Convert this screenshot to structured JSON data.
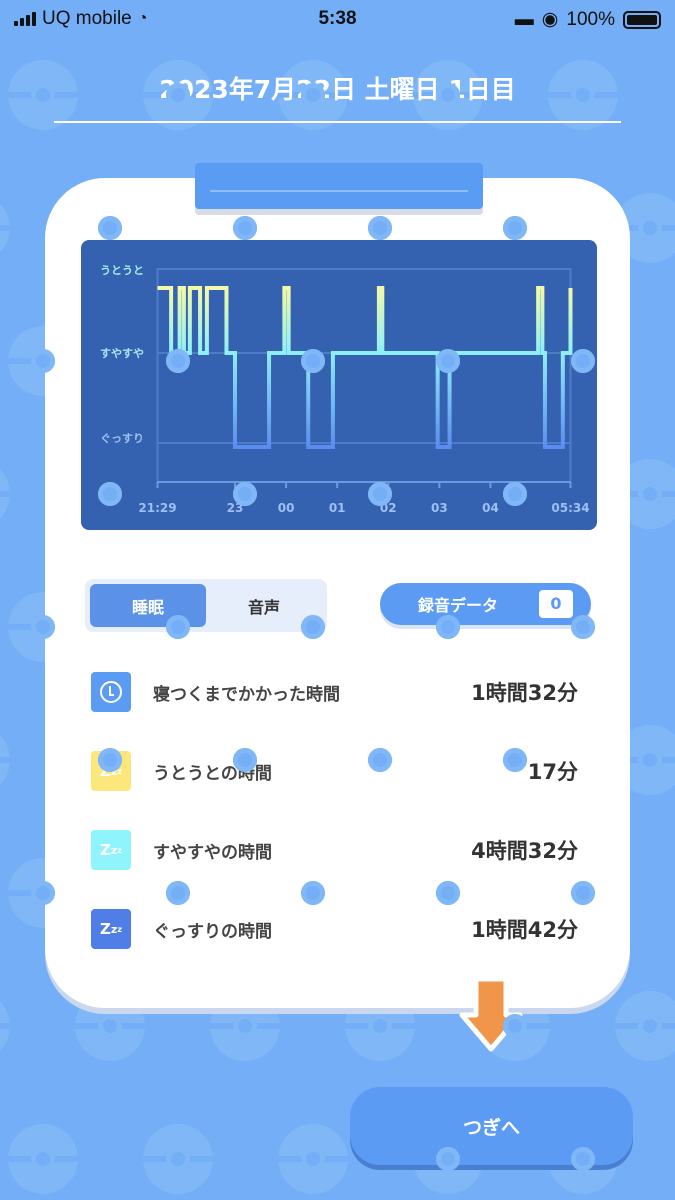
{
  "status_bar": {
    "carrier": "UQ mobile",
    "time": "5:38",
    "battery": "100%",
    "icons": [
      "signal-icon",
      "wifi-icon",
      "bed-icon",
      "orientation-lock-icon",
      "battery-icon"
    ]
  },
  "header": {
    "title": "2023年7月22日 土曜日 1日目"
  },
  "chart_data": {
    "type": "line",
    "step": true,
    "y_categories": [
      "うとうと",
      "すやすや",
      "ぐっすり"
    ],
    "x_ticks": [
      "21:29",
      "23",
      "00",
      "01",
      "02",
      "03",
      "04",
      "05:34"
    ],
    "x_range": [
      "21:29",
      "05:34"
    ],
    "segments": [
      {
        "start": "21:29",
        "end": "21:45",
        "level": "うとうと"
      },
      {
        "start": "21:45",
        "end": "21:55",
        "level": "すやすや"
      },
      {
        "start": "21:55",
        "end": "22:00",
        "level": "うとうと"
      },
      {
        "start": "22:00",
        "end": "22:07",
        "level": "すやすや"
      },
      {
        "start": "22:07",
        "end": "22:19",
        "level": "うとうと"
      },
      {
        "start": "22:19",
        "end": "22:27",
        "level": "すやすや"
      },
      {
        "start": "22:27",
        "end": "22:50",
        "level": "うとうと"
      },
      {
        "start": "22:50",
        "end": "23:00",
        "level": "すやすや"
      },
      {
        "start": "23:00",
        "end": "23:40",
        "level": "ぐっすり"
      },
      {
        "start": "23:40",
        "end": "23:58",
        "level": "すやすや"
      },
      {
        "start": "23:58",
        "end": "00:03",
        "level": "うとうと"
      },
      {
        "start": "00:03",
        "end": "00:26",
        "level": "すやすや"
      },
      {
        "start": "00:26",
        "end": "00:55",
        "level": "ぐっすり"
      },
      {
        "start": "00:55",
        "end": "01:49",
        "level": "すやすや"
      },
      {
        "start": "01:49",
        "end": "01:53",
        "level": "うとうと"
      },
      {
        "start": "01:53",
        "end": "02:58",
        "level": "すやすや"
      },
      {
        "start": "02:58",
        "end": "03:12",
        "level": "ぐっすり"
      },
      {
        "start": "03:12",
        "end": "04:56",
        "level": "すやすや"
      },
      {
        "start": "04:56",
        "end": "05:01",
        "level": "うとうと"
      },
      {
        "start": "05:01",
        "end": "05:04",
        "level": "すやすや"
      },
      {
        "start": "05:04",
        "end": "05:25",
        "level": "ぐっすり"
      },
      {
        "start": "05:25",
        "end": "05:34",
        "level": "すやすや"
      },
      {
        "start": "05:34",
        "end": "05:34",
        "level": "うとうと"
      }
    ],
    "colors": {
      "うとうと": "#f3f9a8",
      "すやすや": "#8ff0f5",
      "ぐっすり": "#5b8cf0"
    },
    "grid": true
  },
  "tabs": [
    {
      "label": "睡眠",
      "active": true
    },
    {
      "label": "音声",
      "active": false
    }
  ],
  "recording": {
    "label": "録音データ",
    "count": "0"
  },
  "stats": [
    {
      "icon": "clock-icon",
      "label": "寝つくまでかかった時間",
      "value": "1時間32分",
      "color": "#5b9bf3"
    },
    {
      "icon": "zzz-icon",
      "label": "うとうとの時間",
      "value": "17分",
      "color": "#fbe77c"
    },
    {
      "icon": "zzz-icon",
      "label": "すやすやの時間",
      "value": "4時間32分",
      "color": "#8ff4fb"
    },
    {
      "icon": "zzz-icon",
      "label": "ぐっすりの時間",
      "value": "1時間42分",
      "color": "#4f7fe6"
    }
  ],
  "next_button": {
    "label": "つぎへ"
  },
  "accent": "#5b9bf3",
  "arrow_color": "#f0954a"
}
